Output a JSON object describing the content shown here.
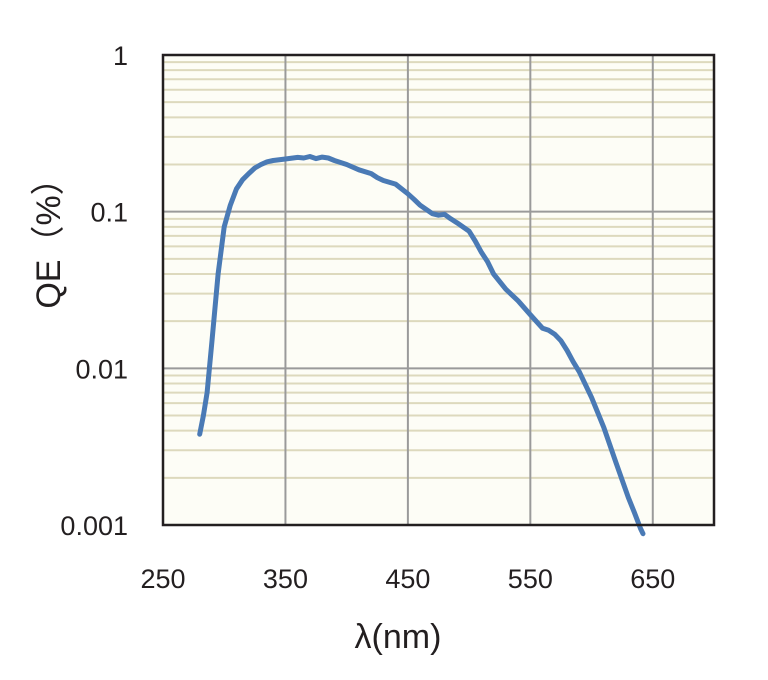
{
  "chart_data": {
    "type": "line",
    "xlabel": "λ(nm)",
    "ylabel": "QE（%）",
    "xlim": [
      250,
      700
    ],
    "ylim": [
      0.001,
      1
    ],
    "yscale": "log",
    "grid": true,
    "x_ticks": [
      "250",
      "350",
      "450",
      "550",
      "650"
    ],
    "y_ticks": [
      "0.001",
      "0.01",
      "0.1",
      "1"
    ],
    "colors": {
      "line": "#4a7ab5",
      "plot_background": "#fdfdf6",
      "major_grid": "#9a9a9a",
      "minor_grid": "#ddd9bd"
    },
    "series": [
      {
        "x": [
          280,
          283,
          286,
          290,
          295,
          300,
          305,
          310,
          315,
          320,
          325,
          330,
          335,
          340,
          350,
          360,
          365,
          370,
          375,
          380,
          385,
          390,
          400,
          410,
          420,
          425,
          430,
          440,
          450,
          455,
          460,
          470,
          475,
          480,
          485,
          490,
          500,
          505,
          510,
          515,
          520,
          530,
          540,
          550,
          560,
          565,
          570,
          575,
          580,
          585,
          590,
          600,
          610,
          620,
          630,
          635,
          640,
          642
        ],
        "y": [
          0.0038,
          0.005,
          0.007,
          0.015,
          0.04,
          0.08,
          0.11,
          0.14,
          0.16,
          0.175,
          0.19,
          0.2,
          0.208,
          0.212,
          0.217,
          0.222,
          0.22,
          0.225,
          0.218,
          0.223,
          0.22,
          0.212,
          0.2,
          0.185,
          0.175,
          0.165,
          0.158,
          0.15,
          0.13,
          0.12,
          0.11,
          0.097,
          0.095,
          0.096,
          0.09,
          0.085,
          0.075,
          0.065,
          0.055,
          0.048,
          0.04,
          0.032,
          0.027,
          0.022,
          0.018,
          0.0175,
          0.0165,
          0.015,
          0.013,
          0.011,
          0.0095,
          0.0065,
          0.0042,
          0.0025,
          0.0015,
          0.0012,
          0.00095,
          0.00088
        ]
      }
    ]
  }
}
